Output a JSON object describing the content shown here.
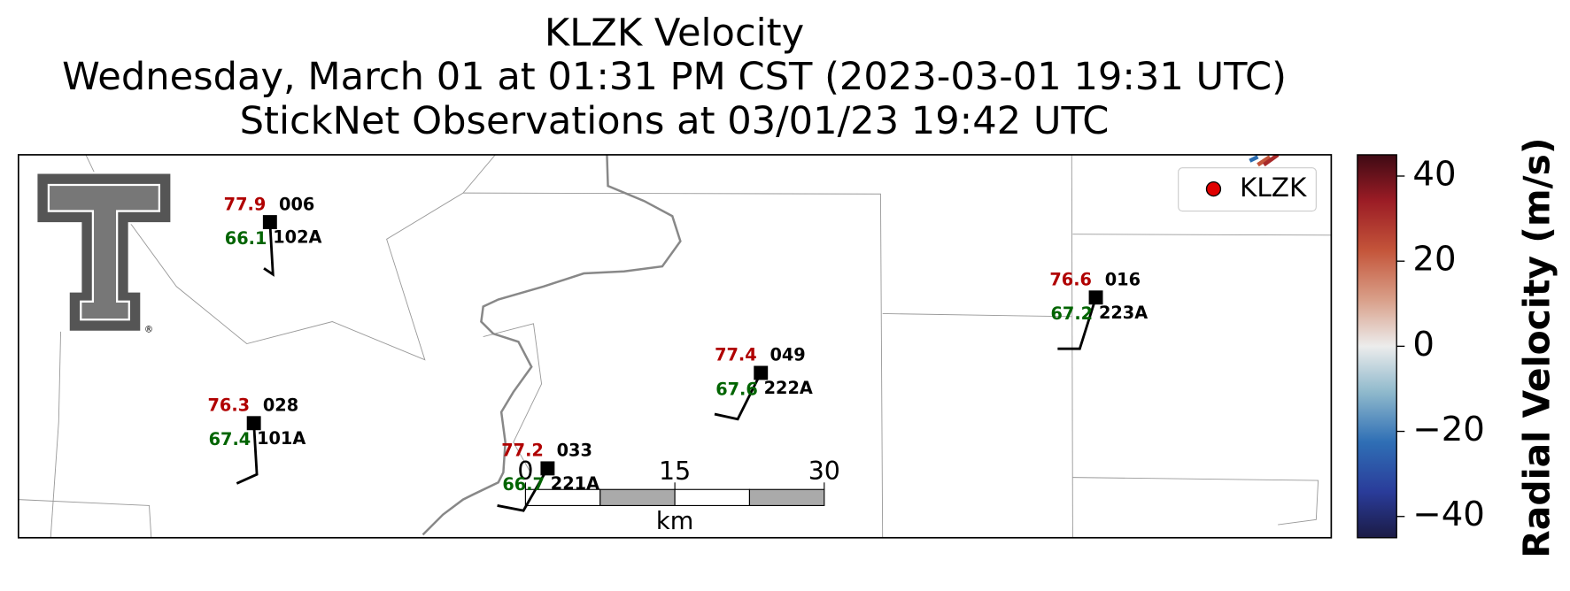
{
  "title": [
    "KLZK Velocity",
    "Wednesday, March 01 at 01:31 PM CST (2023-03-01 19:31 UTC)",
    "StickNet Observations at 03/01/23 19:42 UTC"
  ],
  "legend": {
    "label": "KLZK",
    "color": "#e00000"
  },
  "logo": {
    "mark": "®"
  },
  "stations": [
    {
      "station": "006",
      "probe": "102A",
      "temperature": 77.9,
      "dewpoint": 66.1
    },
    {
      "station": "028",
      "probe": "101A",
      "temperature": 76.3,
      "dewpoint": 67.4
    },
    {
      "station": "033",
      "probe": "221A",
      "temperature": 77.2,
      "dewpoint": 66.7
    },
    {
      "station": "049",
      "probe": "222A",
      "temperature": 77.4,
      "dewpoint": 67.6
    },
    {
      "station": "016",
      "probe": "223A",
      "temperature": 76.6,
      "dewpoint": 67.2
    }
  ],
  "scale_bar": {
    "ticks": [
      0,
      15,
      30
    ],
    "unit": "km"
  },
  "colorbar": {
    "label": "Radial Velocity (m/s)",
    "lim": [
      -45,
      45
    ],
    "ticks": [
      40,
      20,
      0,
      {
        "value": -20,
        "label": "−20"
      },
      {
        "value": -40,
        "label": "−40"
      }
    ]
  }
}
